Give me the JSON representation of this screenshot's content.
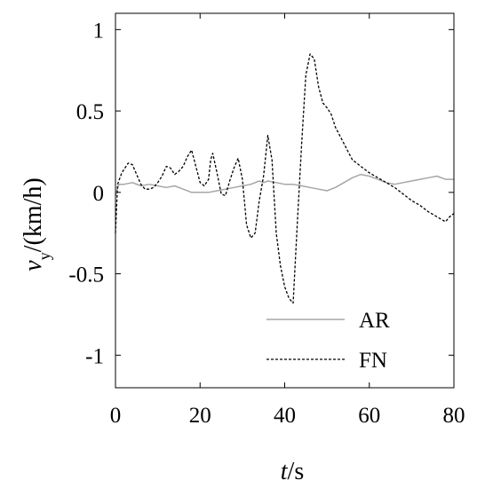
{
  "chart_data": {
    "type": "line",
    "xlabel": {
      "var": "t",
      "unit": "/s"
    },
    "ylabel": {
      "var": "v",
      "sub": "y",
      "unit": "/(km/h)"
    },
    "xlim": [
      0,
      80
    ],
    "ylim": [
      -1.2,
      1.1
    ],
    "xticks": [
      0,
      20,
      40,
      60,
      80
    ],
    "yticks": [
      1,
      0.5,
      0,
      -0.5,
      -1
    ],
    "ytick_labels": [
      "1",
      "0.5",
      "0",
      "-0.5",
      "-1"
    ],
    "grid": false,
    "legend_position": "bottom-right",
    "series": [
      {
        "name": "AR",
        "color": "#a6a6a6",
        "style": "solid",
        "x": [
          0,
          0.8,
          2,
          4,
          6,
          8,
          10,
          12,
          14,
          16,
          18,
          20,
          22,
          24,
          26,
          28,
          30,
          32,
          34,
          35,
          36,
          38,
          40,
          42,
          44,
          46,
          48,
          50,
          52,
          54,
          56,
          58,
          60,
          62,
          64,
          66,
          68,
          70,
          72,
          74,
          76,
          78,
          80
        ],
        "y": [
          -0.02,
          0.05,
          0.05,
          0.06,
          0.04,
          0.05,
          0.04,
          0.03,
          0.04,
          0.02,
          0.0,
          0.0,
          0.0,
          0.01,
          0.02,
          0.03,
          0.04,
          0.05,
          0.07,
          0.06,
          0.07,
          0.06,
          0.05,
          0.05,
          0.04,
          0.03,
          0.02,
          0.01,
          0.03,
          0.06,
          0.09,
          0.11,
          0.1,
          0.08,
          0.06,
          0.05,
          0.06,
          0.07,
          0.08,
          0.09,
          0.1,
          0.08,
          0.08
        ]
      },
      {
        "name": "FN",
        "color": "#000000",
        "style": "dashed",
        "x": [
          0,
          0.5,
          1.5,
          3,
          4,
          5,
          6,
          7,
          8,
          9,
          10,
          11,
          12,
          13,
          14,
          15,
          16,
          17,
          18,
          19,
          20,
          21,
          22,
          22.5,
          23,
          24,
          25,
          26,
          27,
          28,
          29,
          30,
          31,
          32,
          33,
          34,
          35,
          36,
          37,
          38,
          39,
          40,
          41,
          42,
          43,
          44,
          45,
          46,
          47,
          48,
          49,
          50,
          51,
          52,
          53,
          54,
          55,
          56,
          57,
          58,
          59,
          60,
          62,
          64,
          66,
          68,
          70,
          72,
          74,
          76,
          78,
          79,
          80
        ],
        "y": [
          -0.25,
          0.05,
          0.12,
          0.18,
          0.17,
          0.11,
          0.05,
          0.02,
          0.02,
          0.03,
          0.06,
          0.1,
          0.16,
          0.15,
          0.11,
          0.13,
          0.16,
          0.22,
          0.26,
          0.16,
          0.06,
          0.04,
          0.08,
          0.2,
          0.24,
          0.12,
          -0.01,
          -0.02,
          0.07,
          0.15,
          0.21,
          0.08,
          -0.2,
          -0.28,
          -0.25,
          -0.05,
          0.1,
          0.35,
          0.2,
          -0.25,
          -0.45,
          -0.58,
          -0.65,
          -0.68,
          -0.18,
          0.3,
          0.72,
          0.85,
          0.82,
          0.65,
          0.55,
          0.52,
          0.48,
          0.4,
          0.35,
          0.3,
          0.25,
          0.2,
          0.18,
          0.16,
          0.14,
          0.12,
          0.09,
          0.06,
          0.03,
          -0.01,
          -0.05,
          -0.08,
          -0.12,
          -0.15,
          -0.18,
          -0.15,
          -0.13
        ]
      }
    ]
  }
}
